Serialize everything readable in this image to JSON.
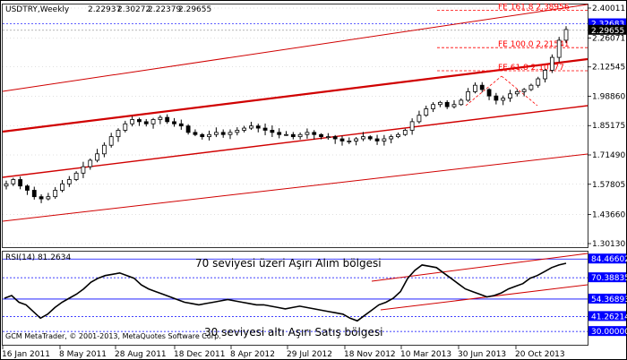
{
  "window": {
    "title": "USDTRY,Weekly",
    "ohlc_values": [
      "2.22937",
      "2.30272",
      "2.22379",
      "2.29655"
    ]
  },
  "price_axis": {
    "tick_labels": [
      "2.40011",
      "2.26071",
      "2.12545",
      "1.98860",
      "1.85175",
      "1.71490",
      "1.57805",
      "1.43660",
      "1.30130"
    ],
    "tick_values": [
      2.40011,
      2.26071,
      2.12545,
      1.9886,
      1.85175,
      1.7149,
      1.57805,
      1.4366,
      1.3013
    ],
    "range": [
      1.3013,
      2.40011
    ],
    "highlight_labels": [
      "2.32683",
      "2.29655"
    ],
    "highlight_values": [
      2.32683,
      2.29655
    ],
    "highlight_colors": [
      "#0000ff",
      "#000000"
    ]
  },
  "fib_levels": [
    {
      "label": "FE 161.8",
      "value": "2.38956",
      "price": 2.38956
    },
    {
      "label": "FE 100.0",
      "value": "2.21541",
      "price": 2.21541
    },
    {
      "label": "FE 61.8",
      "value": "2.10777",
      "price": 2.10777
    }
  ],
  "rsi": {
    "title": "RSI(14) 81.2634",
    "levels": [
      "84.46602",
      "70.38835",
      "54.36893",
      "41.26214",
      "30.00000"
    ],
    "level_values": [
      84.46602,
      70.38835,
      54.36893,
      41.26214,
      30.0
    ],
    "range": [
      20,
      90
    ]
  },
  "annotations": {
    "overbought": "70 seviyesi üzeri Aşırı Alım bölgesi",
    "oversold": "30 seviyesi altı Aşırı Satış bölgesi"
  },
  "copyright": "GCM MetaTrader, © 2001-2013, MetaQuotes Software Corp.",
  "time_axis": [
    "16 Jan 2011",
    "8 May 2011",
    "28 Aug 2011",
    "18 Dec 2011",
    "8 Apr 2012",
    "29 Jul 2012",
    "18 Nov 2012",
    "10 Mar 2013",
    "30 Jun 2013",
    "20 Oct 2013"
  ],
  "colors": {
    "candles": "#000000",
    "channel": "#d00000",
    "fib": "#ff0000",
    "rsi_line": "#000000",
    "level_line": "#0000ff",
    "grid": "#c0c0c0"
  },
  "chart_data": {
    "type": "candlestick",
    "x": [
      "2011-01-16",
      "2011-05-08",
      "2011-08-28",
      "2011-12-18",
      "2012-04-08",
      "2012-07-29",
      "2012-11-18",
      "2013-03-10",
      "2013-06-30",
      "2013-10-20"
    ],
    "close_series": [
      1.58,
      1.6,
      1.57,
      1.55,
      1.52,
      1.51,
      1.52,
      1.55,
      1.58,
      1.6,
      1.63,
      1.66,
      1.69,
      1.72,
      1.76,
      1.8,
      1.83,
      1.86,
      1.88,
      1.87,
      1.86,
      1.88,
      1.89,
      1.87,
      1.86,
      1.85,
      1.82,
      1.81,
      1.8,
      1.81,
      1.82,
      1.81,
      1.82,
      1.83,
      1.84,
      1.85,
      1.84,
      1.83,
      1.82,
      1.81,
      1.81,
      1.8,
      1.81,
      1.82,
      1.81,
      1.8,
      1.8,
      1.79,
      1.78,
      1.78,
      1.79,
      1.8,
      1.79,
      1.78,
      1.79,
      1.8,
      1.81,
      1.83,
      1.87,
      1.9,
      1.93,
      1.95,
      1.96,
      1.94,
      1.95,
      1.97,
      2.01,
      2.04,
      2.02,
      1.99,
      1.97,
      1.98,
      2.0,
      2.01,
      2.02,
      2.04,
      2.07,
      2.11,
      2.17,
      2.25,
      2.3
    ],
    "rsi_series": [
      55,
      57,
      52,
      50,
      45,
      40,
      43,
      48,
      52,
      55,
      58,
      62,
      67,
      70,
      72,
      73,
      74,
      72,
      70,
      65,
      62,
      60,
      58,
      56,
      54,
      52,
      51,
      50,
      51,
      52,
      53,
      54,
      53,
      52,
      51,
      50,
      50,
      49,
      48,
      47,
      48,
      49,
      48,
      47,
      46,
      45,
      44,
      43,
      40,
      38,
      42,
      46,
      50,
      52,
      55,
      60,
      70,
      76,
      80,
      79,
      78,
      74,
      70,
      66,
      62,
      60,
      58,
      56,
      57,
      59,
      62,
      64,
      66,
      70,
      72,
      75,
      78,
      80,
      81.26
    ],
    "rsi_range": [
      20,
      90
    ]
  }
}
